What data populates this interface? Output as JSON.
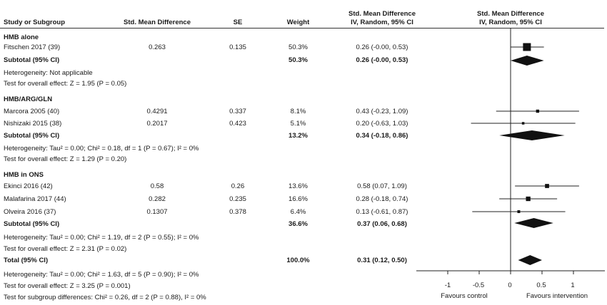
{
  "header": {
    "study": "Study or Subgroup",
    "smd": "Std. Mean Difference",
    "se": "SE",
    "weight": "Weight",
    "ci_title": "Std. Mean Difference",
    "ci_sub": "IV, Random, 95% CI",
    "plot_title": "Std. Mean Difference",
    "plot_sub": "IV, Random, 95% CI"
  },
  "groups": [
    {
      "name": "HMB alone",
      "studies": [
        {
          "name": "Fitschen 2017 (39)",
          "smd": "0.263",
          "se": "0.135",
          "weight": "50.3%",
          "ci": "0.26 (-0.00, 0.53)"
        }
      ],
      "subtotal": {
        "label": "Subtotal (95% CI)",
        "weight": "50.3%",
        "ci": "0.26 (-0.00, 0.53)"
      },
      "heterogeneity": "Heterogeneity: Not applicable",
      "overall": "Test for overall effect: Z = 1.95 (P = 0.05)"
    },
    {
      "name": "HMB/ARG/GLN",
      "studies": [
        {
          "name": "Marcora 2005 (40)",
          "smd": "0.4291",
          "se": "0.337",
          "weight": "8.1%",
          "ci": "0.43 (-0.23, 1.09)"
        },
        {
          "name": "Nishizaki 2015 (38)",
          "smd": "0.2017",
          "se": "0.423",
          "weight": "5.1%",
          "ci": "0.20 (-0.63, 1.03)"
        }
      ],
      "subtotal": {
        "label": "Subtotal (95% CI)",
        "weight": "13.2%",
        "ci": "0.34 (-0.18, 0.86)"
      },
      "heterogeneity": "Heterogeneity: Tau² = 0.00; Chi² = 0.18, df = 1 (P = 0.67); I² = 0%",
      "overall": "Test for overall effect: Z = 1.29 (P = 0.20)"
    },
    {
      "name": "HMB in ONS",
      "studies": [
        {
          "name": "Ekinci 2016 (42)",
          "smd": "0.58",
          "se": "0.26",
          "weight": "13.6%",
          "ci": "0.58 (0.07, 1.09)"
        },
        {
          "name": "Malafarina 2017 (44)",
          "smd": "0.282",
          "se": "0.235",
          "weight": "16.6%",
          "ci": "0.28 (-0.18, 0.74)"
        },
        {
          "name": "Olveira 2016 (37)",
          "smd": "0.1307",
          "se": "0.378",
          "weight": "6.4%",
          "ci": "0.13 (-0.61, 0.87)"
        }
      ],
      "subtotal": {
        "label": "Subtotal (95% CI)",
        "weight": "36.6%",
        "ci": "0.37 (0.06, 0.68)"
      },
      "heterogeneity": "Heterogeneity: Tau² = 0.00; Chi² = 1.19, df = 2 (P = 0.55); I² = 0%",
      "overall": "Test for overall effect: Z = 2.31 (P = 0.02)"
    }
  ],
  "total": {
    "label": "Total (95% CI)",
    "weight": "100.0%",
    "ci": "0.31 (0.12, 0.50)",
    "heterogeneity": "Heterogeneity: Tau² = 0.00; Chi² = 1.63, df = 5 (P = 0.90); I² = 0%",
    "overall": "Test for overall effect: Z = 3.25 (P = 0.001)",
    "subgroup": "Test for subgroup differences: Chi² = 0.26, df = 2 (P = 0.88), I² = 0%"
  },
  "axis": {
    "ticks": [
      "-1",
      "-0.5",
      "0",
      "0.5",
      "1"
    ],
    "favours_left": "Favours control",
    "favours_right": "Favours intervention"
  },
  "chart_data": {
    "type": "forest",
    "xlim": [
      -1.5,
      1.5
    ],
    "ticks": [
      -1,
      -0.5,
      0,
      0.5,
      1
    ],
    "studies": [
      {
        "name": "Fitschen 2017 (39)",
        "est": 0.26,
        "lo": -0.0,
        "hi": 0.53,
        "weight": 50.3
      },
      {
        "name": "Marcora 2005 (40)",
        "est": 0.43,
        "lo": -0.23,
        "hi": 1.09,
        "weight": 8.1
      },
      {
        "name": "Nishizaki 2015 (38)",
        "est": 0.2,
        "lo": -0.63,
        "hi": 1.03,
        "weight": 5.1
      },
      {
        "name": "Ekinci 2016 (42)",
        "est": 0.58,
        "lo": 0.07,
        "hi": 1.09,
        "weight": 13.6
      },
      {
        "name": "Malafarina 2017 (44)",
        "est": 0.28,
        "lo": -0.18,
        "hi": 0.74,
        "weight": 16.6
      },
      {
        "name": "Olveira 2016 (37)",
        "est": 0.13,
        "lo": -0.61,
        "hi": 0.87,
        "weight": 6.4
      }
    ],
    "diamonds": [
      {
        "name": "HMB alone subtotal",
        "est": 0.26,
        "lo": -0.0,
        "hi": 0.53
      },
      {
        "name": "HMB/ARG/GLN subtotal",
        "est": 0.34,
        "lo": -0.18,
        "hi": 0.86
      },
      {
        "name": "HMB in ONS subtotal",
        "est": 0.37,
        "lo": 0.06,
        "hi": 0.68
      },
      {
        "name": "Total",
        "est": 0.31,
        "lo": 0.12,
        "hi": 0.5
      }
    ]
  }
}
